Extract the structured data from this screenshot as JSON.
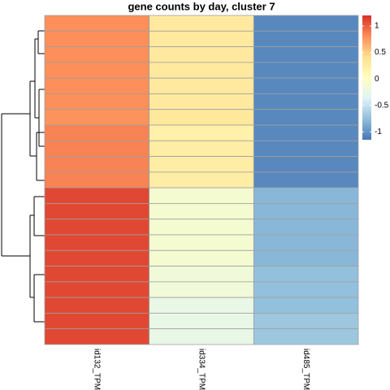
{
  "chart_data": {
    "type": "heatmap",
    "title": "gene counts by day, cluster 7",
    "columns": [
      "id132_TPM",
      "id334_TPM",
      "id485_TPM"
    ],
    "values": [
      [
        0.8,
        0.3,
        -1.05
      ],
      [
        0.8,
        0.3,
        -1.05
      ],
      [
        0.8,
        0.3,
        -1.05
      ],
      [
        0.8,
        0.3,
        -1.05
      ],
      [
        0.8,
        0.3,
        -1.05
      ],
      [
        0.8,
        0.3,
        -1.05
      ],
      [
        0.78,
        0.32,
        -1.05
      ],
      [
        0.85,
        0.2,
        -1.05
      ],
      [
        0.85,
        0.25,
        -1.05
      ],
      [
        0.85,
        0.25,
        -1.05
      ],
      [
        0.85,
        0.25,
        -1.05
      ],
      [
        1.1,
        -0.1,
        -0.8
      ],
      [
        1.1,
        -0.1,
        -0.8
      ],
      [
        1.1,
        -0.1,
        -0.8
      ],
      [
        1.1,
        -0.1,
        -0.8
      ],
      [
        1.1,
        -0.1,
        -0.8
      ],
      [
        1.1,
        -0.15,
        -0.75
      ],
      [
        1.1,
        -0.15,
        -0.75
      ],
      [
        1.1,
        -0.25,
        -0.75
      ],
      [
        1.1,
        -0.25,
        -0.7
      ],
      [
        1.1,
        -0.25,
        -0.7
      ]
    ],
    "colors": [
      "#4575B4",
      "#91BFDB",
      "#E0F3F8",
      "#FFFFBF",
      "#FEE090",
      "#FC8D59",
      "#D73027"
    ],
    "zlim": [
      -1.15,
      1.2
    ],
    "zticks": [
      1,
      0.5,
      0,
      -0.5,
      -1
    ]
  }
}
